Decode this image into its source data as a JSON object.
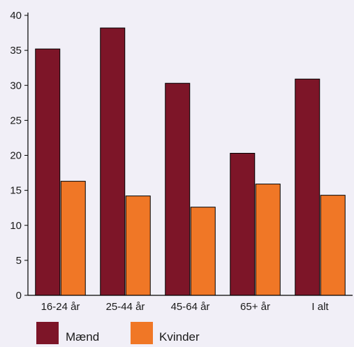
{
  "chart_data": {
    "type": "bar",
    "categories": [
      "16-24 år",
      "25-44 år",
      "45-64 år",
      "65+ år",
      "I alt"
    ],
    "series": [
      {
        "name": "Mænd",
        "color": "#7d1528",
        "values": [
          35.2,
          38.2,
          30.3,
          20.3,
          30.9
        ]
      },
      {
        "name": "Kvinder",
        "color": "#f07726",
        "values": [
          16.3,
          14.2,
          12.6,
          15.9,
          14.3
        ]
      }
    ],
    "ylim": [
      0,
      40
    ],
    "yticks": [
      0,
      5,
      10,
      15,
      20,
      25,
      30,
      35,
      40
    ],
    "grid": false,
    "legend_position": "bottom-left"
  }
}
